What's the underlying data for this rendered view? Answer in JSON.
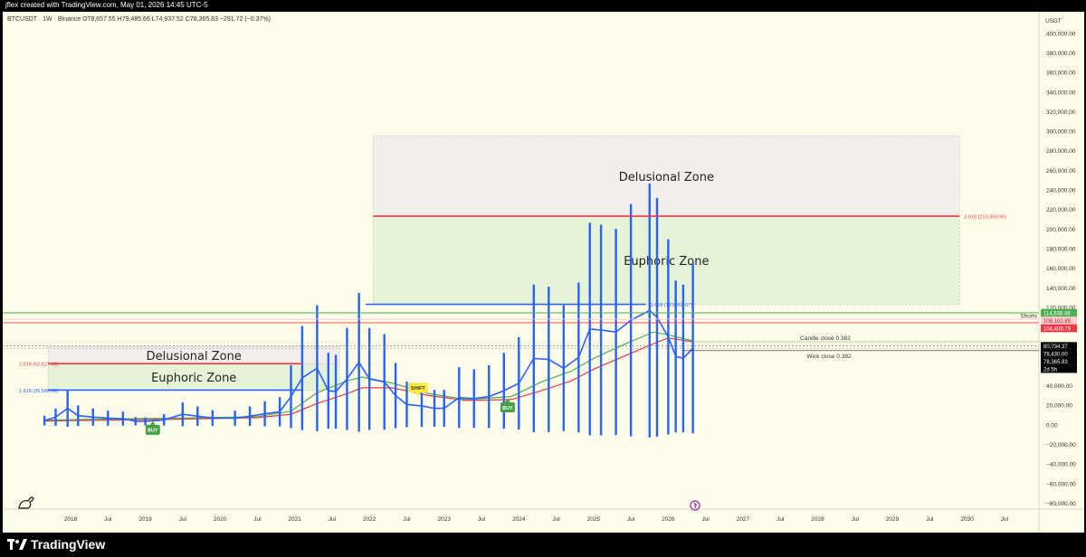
{
  "header": {
    "created_by": "jflex created with TradingView.com, May 01, 2026 14:45 UTC-5"
  },
  "symbol_line": "BTCUSDT · 1W · Binance  O78,657.55  H79,485.66  L74,937.52  C78,365.83  −291.72 (−0.37%)",
  "footer": {
    "brand": "TradingView"
  },
  "colors": {
    "background": "#fdfde9",
    "fib_blue": "#2962ff",
    "fib_red": "#f23645",
    "ema_green": "#4caf50",
    "ema_red": "#f23645",
    "candles": "#2962ff",
    "buy": "#43a047",
    "shift": "#ffeb3b"
  },
  "chart_data": {
    "type": "line",
    "title": "BTCUSDT · 1W · Binance",
    "currency_label": "USDT",
    "ylim": [
      -90000,
      410000
    ],
    "y_ticks": [
      "400,000.00",
      "380,000.00",
      "360,000.00",
      "340,000.00",
      "320,000.00",
      "300,000.00",
      "280,000.00",
      "260,000.00",
      "240,000.00",
      "220,000.00",
      "200,000.00",
      "180,000.00",
      "160,000.00",
      "140,000.00",
      "120,000.00",
      "100,000.00",
      "80,000.00",
      "60,000.00",
      "40,000.00",
      "20,000.00",
      "0.00",
      "−20,000.00",
      "−40,000.00",
      "−60,000.00",
      "−80,000.00"
    ],
    "x_ticks": [
      "2018",
      "Jul",
      "2019",
      "Jul",
      "2020",
      "Jul",
      "2021",
      "Jul",
      "2022",
      "Jul",
      "2023",
      "Jul",
      "2024",
      "Jul",
      "2025",
      "Jul",
      "2026",
      "Jul",
      "2027",
      "Jul",
      "2028",
      "Jul",
      "2029",
      "Jul",
      "2030",
      "Jul"
    ],
    "x_tick_years": [
      2018,
      2018.5,
      2019,
      2019.5,
      2020,
      2020.5,
      2021,
      2021.5,
      2022,
      2022.5,
      2023,
      2023.5,
      2024,
      2024.5,
      2025,
      2025.5,
      2026,
      2026.5,
      2027,
      2027.5,
      2028,
      2028.5,
      2029,
      2029.5,
      2030,
      2030.5
    ],
    "price_series": {
      "name": "BTCUSDT",
      "x": [
        2017.65,
        2017.8,
        2017.96,
        2018.1,
        2018.3,
        2018.5,
        2018.7,
        2018.87,
        2019.0,
        2019.25,
        2019.5,
        2019.7,
        2019.9,
        2020.2,
        2020.4,
        2020.6,
        2020.8,
        2020.95,
        2021.1,
        2021.3,
        2021.45,
        2021.55,
        2021.7,
        2021.86,
        2022.0,
        2022.2,
        2022.35,
        2022.5,
        2022.7,
        2022.87,
        2023.0,
        2023.2,
        2023.4,
        2023.6,
        2023.8,
        2024.0,
        2024.2,
        2024.4,
        2024.6,
        2024.8,
        2024.95,
        2025.1,
        2025.3,
        2025.5,
        2025.75,
        2025.85,
        2026.0,
        2026.1,
        2026.2,
        2026.33
      ],
      "y": [
        4500,
        8000,
        17000,
        9500,
        8000,
        7000,
        6500,
        3800,
        3700,
        5200,
        11000,
        9000,
        7200,
        7000,
        9000,
        11500,
        13500,
        29000,
        48000,
        58000,
        35000,
        34000,
        47000,
        64000,
        47000,
        44000,
        30000,
        21000,
        19500,
        17000,
        17000,
        28000,
        27000,
        29000,
        35000,
        42500,
        68000,
        67000,
        58000,
        69000,
        98000,
        97000,
        95000,
        107000,
        117000,
        110000,
        90000,
        70000,
        68000,
        78365.83
      ]
    },
    "ema_green": {
      "name": "EMA",
      "x": [
        2017.65,
        2018.5,
        2019.5,
        2020.5,
        2020.95,
        2021.3,
        2021.7,
        2021.9,
        2022.3,
        2022.8,
        2023.3,
        2023.9,
        2024.3,
        2024.7,
        2025.0,
        2025.4,
        2025.8,
        2026.0,
        2026.33
      ],
      "y": [
        5000,
        6000,
        7000,
        8500,
        14000,
        33000,
        45000,
        49000,
        43000,
        32000,
        26000,
        29000,
        44000,
        55000,
        68000,
        82000,
        95000,
        92000,
        86000
      ]
    },
    "ema_red": {
      "name": "EMA",
      "x": [
        2017.65,
        2018.5,
        2019.5,
        2020.5,
        2020.95,
        2021.3,
        2021.7,
        2021.9,
        2022.3,
        2022.8,
        2023.3,
        2023.9,
        2024.3,
        2024.7,
        2025.0,
        2025.4,
        2025.8,
        2026.0,
        2026.33
      ],
      "y": [
        4000,
        5000,
        6000,
        7500,
        11000,
        22000,
        32000,
        38000,
        38000,
        30000,
        25000,
        26000,
        35000,
        45000,
        57000,
        70000,
        83000,
        89000,
        85000
      ]
    },
    "zones": [
      {
        "label": "Delusional Zone",
        "x0": 2017.7,
        "x1": 2021.6,
        "y0": 62627.08,
        "y1": 80000
      },
      {
        "label": "Euphoric Zone",
        "x0": 2017.7,
        "x1": 2021.6,
        "y0": 35580.06,
        "y1": 62627.08
      },
      {
        "label": "Delusional Zone",
        "x0": 2022.05,
        "x1": 2029.9,
        "y0": 213359.95,
        "y1": 295000
      },
      {
        "label": "Euphoric Zone",
        "x0": 2022.05,
        "x1": 2029.9,
        "y0": 123262.07,
        "y1": 213359.95
      }
    ],
    "fib_levels": [
      {
        "label": "2.618 (62,627.08)",
        "value": 62627.08,
        "x0": 2017.7,
        "x1": 2021.1,
        "color": "red"
      },
      {
        "label": "1.618 (35,580.06)",
        "value": 35580.06,
        "x0": 2017.7,
        "x1": 2021.1,
        "color": "blue"
      },
      {
        "label": "2.618 (213,359.95)",
        "value": 213359.95,
        "x0": 2022.05,
        "x1": 2029.9,
        "color": "red"
      },
      {
        "label": "1.618 (123,262.07)",
        "value": 123262.07,
        "x0": 2021.95,
        "x1": 2025.7,
        "color": "blue"
      }
    ],
    "annotations": [
      {
        "label": "Shorts",
        "value": 112000
      },
      {
        "label": "Candle close 0.382",
        "value": 85000
      },
      {
        "label": "Wick close 0.382",
        "value": 75000
      }
    ],
    "signals": [
      {
        "label": "BUY",
        "x": 2019.1,
        "y": -5000
      },
      {
        "label": "BUY",
        "x": 2023.85,
        "y": 18000
      },
      {
        "label": "SHIFT",
        "x": 2022.65,
        "y": 38000
      }
    ],
    "price_labels": [
      {
        "text": "114,538.48",
        "value": 114538.48,
        "bg": "#4caf50"
      },
      {
        "text": "108,102.85",
        "value": 108102.85,
        "bg": "#ffcdd2",
        "fg": "#b71c1c"
      },
      {
        "text": "104,408.79",
        "value": 104408.79,
        "bg": "#f23645"
      },
      {
        "text": "80,734.37",
        "value": 80734.37,
        "bg": "#000000"
      },
      {
        "text": "78,430.00",
        "value": 78430,
        "bg": "#000000"
      },
      {
        "text": "78,365.83",
        "value": 78365.83,
        "bg": "#000000"
      },
      {
        "text": "2d 5h",
        "value": 71500,
        "bg": "#000000"
      }
    ]
  }
}
